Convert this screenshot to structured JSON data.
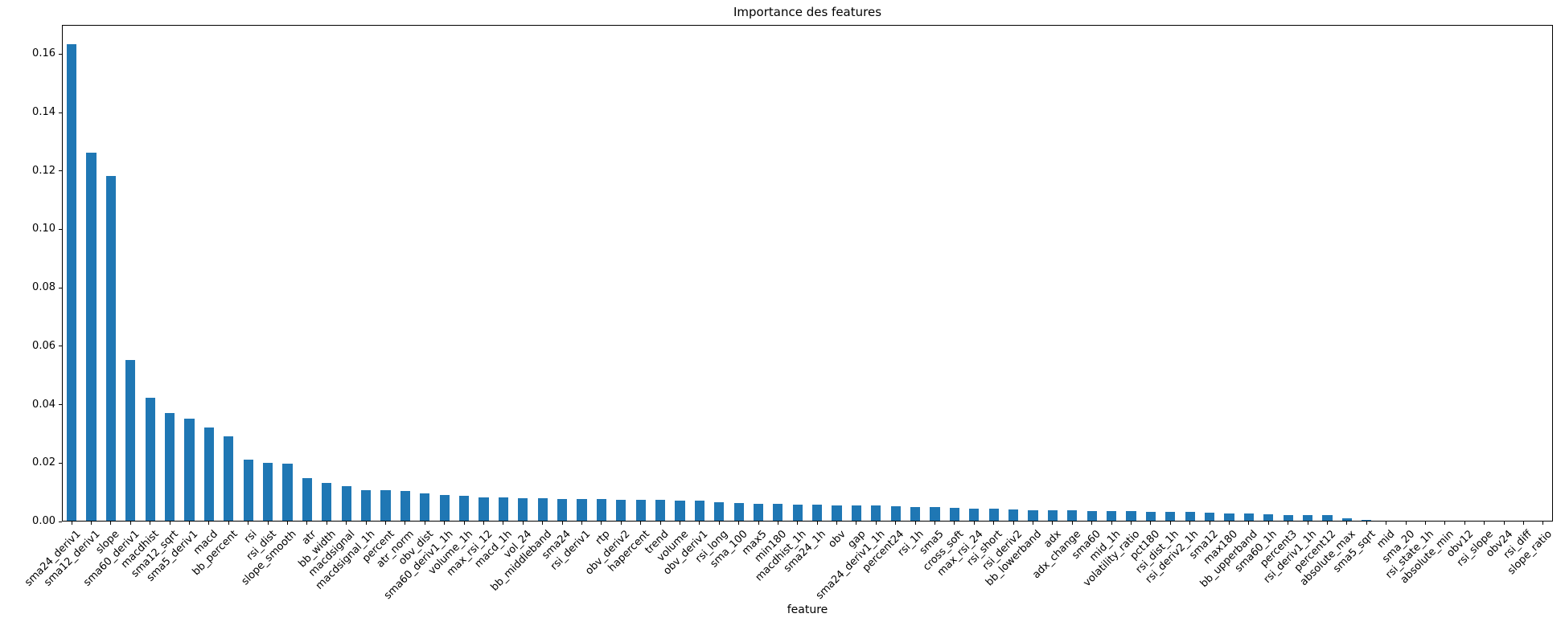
{
  "chart_data": {
    "type": "bar",
    "title": "Importance des features",
    "xlabel": "feature",
    "ylabel": "",
    "ylim": [
      0,
      0.17
    ],
    "grid": false,
    "legend": "none",
    "bar_color": "#1f77b4",
    "ytick_values": [
      0.0,
      0.02,
      0.04,
      0.06,
      0.08,
      0.1,
      0.12,
      0.14,
      0.16
    ],
    "ytick_labels": [
      "0.00",
      "0.02",
      "0.04",
      "0.06",
      "0.08",
      "0.10",
      "0.12",
      "0.14",
      "0.16"
    ],
    "categories": [
      "sma24_deriv1",
      "sma12_deriv1",
      "slope",
      "sma60_deriv1",
      "macdhist",
      "sma12_sqrt",
      "sma5_deriv1",
      "macd",
      "bb_percent",
      "rsi",
      "rsi_dist",
      "slope_smooth",
      "atr",
      "bb_width",
      "macdsignal",
      "macdsignal_1h",
      "percent",
      "atr_norm",
      "obv_dist",
      "sma60_deriv1_1h",
      "volume_1h",
      "max_rsi_12",
      "macd_1h",
      "vol_24",
      "bb_middleband",
      "sma24",
      "rsi_deriv1",
      "rtp",
      "obv_deriv2",
      "hapercent",
      "trend",
      "volume",
      "obv_deriv1",
      "rsi_long",
      "sma_100",
      "max5",
      "min180",
      "macdhist_1h",
      "sma24_1h",
      "obv",
      "gap",
      "sma24_deriv1_1h",
      "percent24",
      "rsi_1h",
      "sma5",
      "cross_soft",
      "max_rsi_24",
      "rsi_short",
      "rsi_deriv2",
      "bb_lowerband",
      "adx",
      "adx_change",
      "sma60",
      "mid_1h",
      "volatility_ratio",
      "pct180",
      "rsi_dist_1h",
      "rsi_deriv2_1h",
      "sma12",
      "max180",
      "bb_upperband",
      "sma60_1h",
      "percent3",
      "rsi_deriv1_1h",
      "percent12",
      "absolute_max",
      "sma5_sqrt",
      "mid",
      "sma_20",
      "rsi_state_1h",
      "absolute_min",
      "obv12",
      "rsi_slope",
      "obv24",
      "rsi_diff",
      "slope_ratio"
    ],
    "values": [
      0.163,
      0.126,
      0.118,
      0.055,
      0.042,
      0.037,
      0.035,
      0.032,
      0.029,
      0.021,
      0.0198,
      0.0196,
      0.0145,
      0.013,
      0.0117,
      0.0105,
      0.0104,
      0.0102,
      0.0094,
      0.0089,
      0.0086,
      0.0081,
      0.008,
      0.0077,
      0.0076,
      0.0075,
      0.0074,
      0.0073,
      0.0072,
      0.0072,
      0.0071,
      0.007,
      0.0068,
      0.0064,
      0.006,
      0.0059,
      0.0057,
      0.0056,
      0.0054,
      0.0053,
      0.0053,
      0.0052,
      0.005,
      0.0048,
      0.0046,
      0.0044,
      0.0042,
      0.004,
      0.0038,
      0.0037,
      0.0036,
      0.0035,
      0.0034,
      0.0033,
      0.0032,
      0.0031,
      0.003,
      0.0029,
      0.0028,
      0.0025,
      0.0024,
      0.0023,
      0.002,
      0.0019,
      0.0018,
      0.0009,
      0.0003,
      0.0,
      0.0,
      0.0,
      0.0,
      0.0,
      0.0,
      0.0,
      0.0,
      0.0
    ]
  }
}
